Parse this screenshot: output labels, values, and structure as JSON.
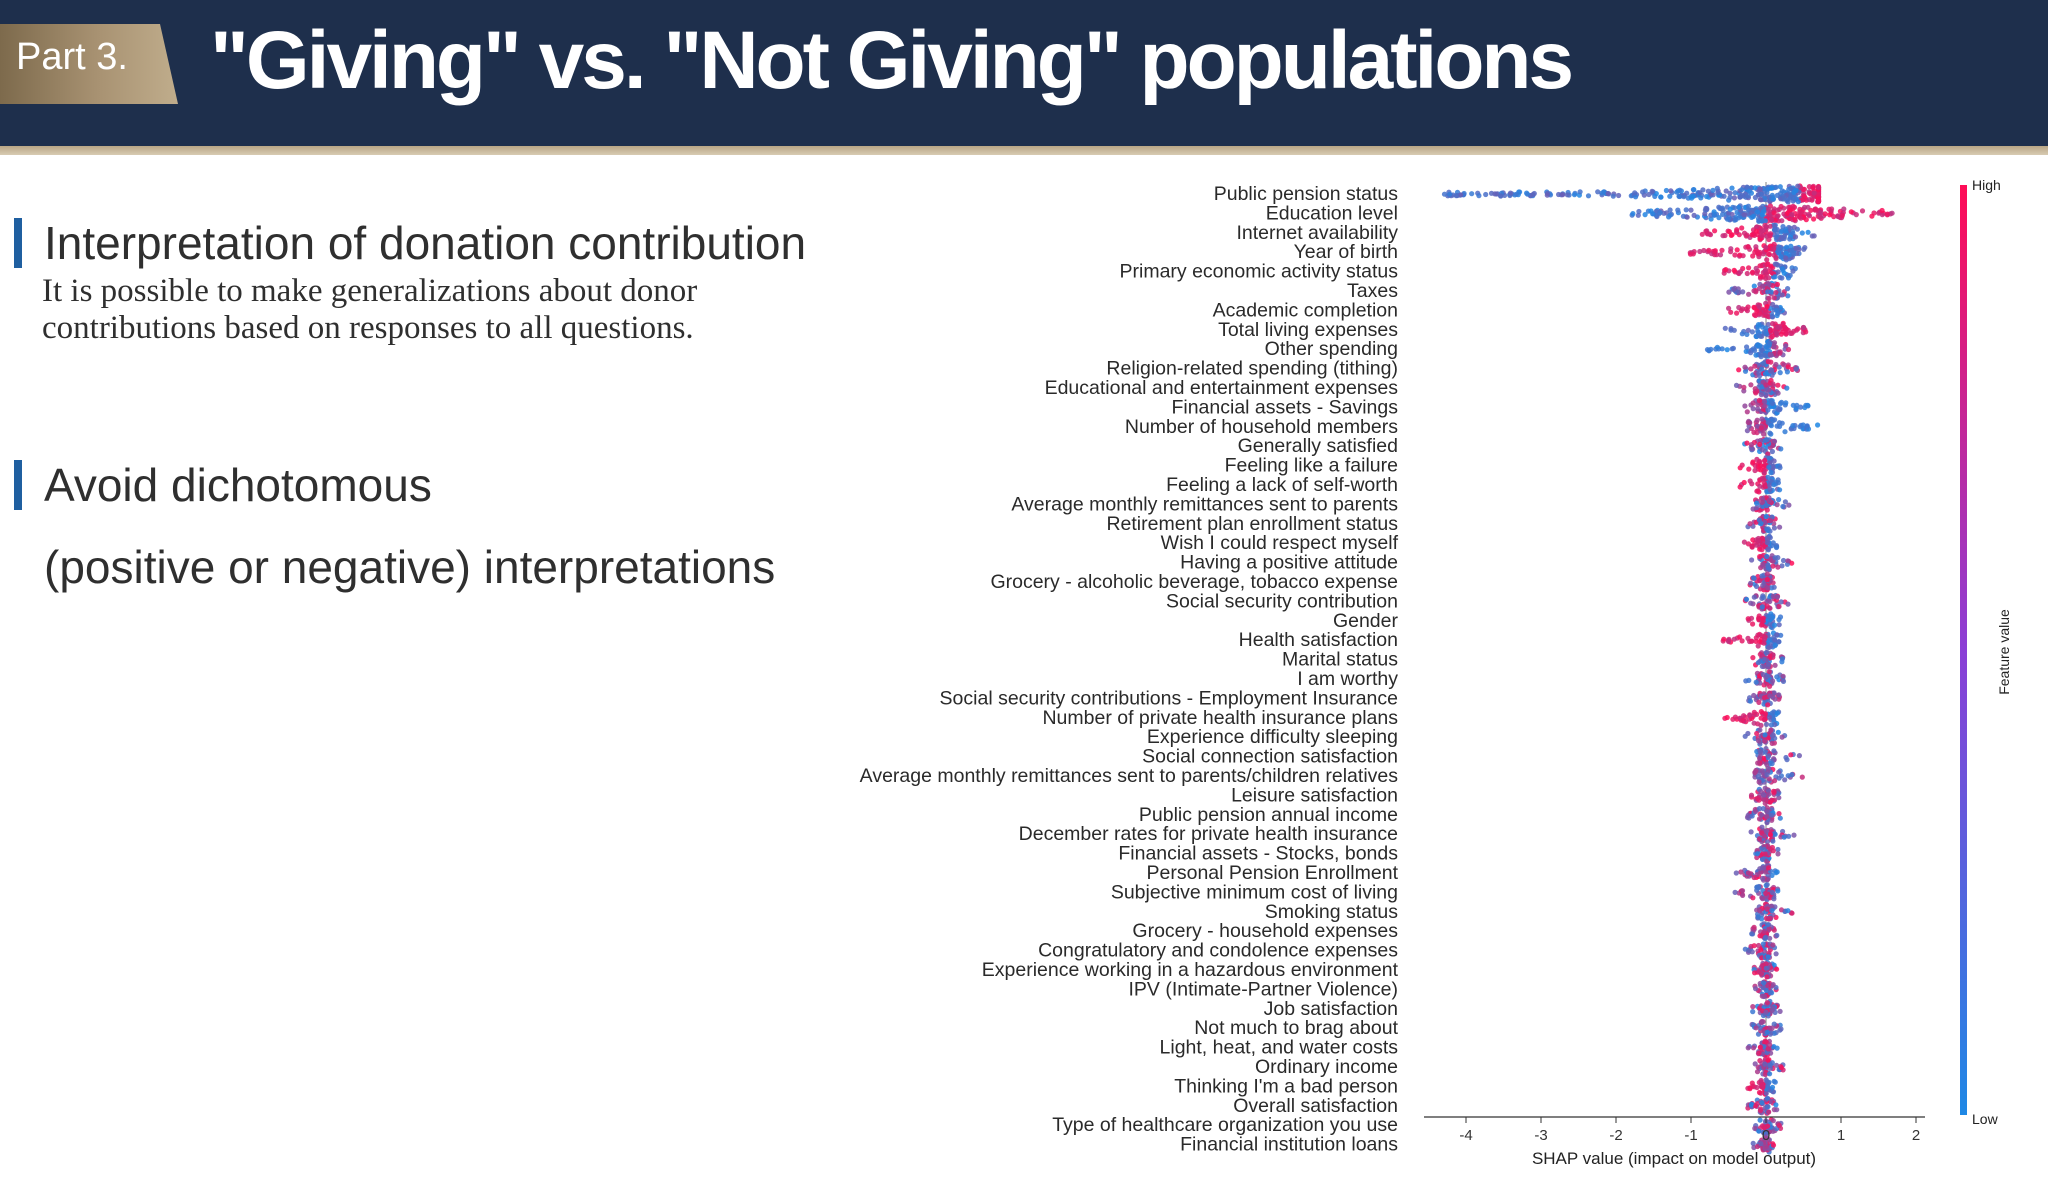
{
  "header": {
    "part_label": "Part 3.",
    "title": "\"Giving\" vs. \"Not Giving\" populations"
  },
  "left": {
    "heading1": "Interpretation of donation contribution",
    "body_lines": [
      "It is possible to make generalizations about donor",
      "contributions based on responses to all questions."
    ],
    "heading2_lines": [
      "Avoid dichotomous",
      "(positive or negative) interpretations"
    ]
  },
  "colors": {
    "header_bg": "#1e2f4c",
    "accent_bar": "#1f5fa0",
    "shap_high": "#ff0d57",
    "shap_low": "#1e88e5"
  },
  "chart_data": {
    "type": "scatter",
    "subtype": "shap-beeswarm-summary",
    "xlabel": "SHAP value (impact on model output)",
    "xlim": [
      -4.5,
      2.2
    ],
    "xticks": [
      -4,
      -3,
      -2,
      -1,
      0,
      1,
      2
    ],
    "colorbar": {
      "label": "Feature value",
      "high": "High",
      "low": "Low"
    },
    "features": [
      {
        "name": "Public pension status",
        "min": -4.3,
        "max": 0.7,
        "dom": 0.45,
        "pol": "hi-pos"
      },
      {
        "name": "Education level",
        "min": -1.8,
        "max": 1.85,
        "dom": 0.0,
        "pol": "hi-pos"
      },
      {
        "name": "Internet availability",
        "min": -0.85,
        "max": 0.65,
        "dom": 0.1,
        "pol": "hi-neg"
      },
      {
        "name": "Year of birth",
        "min": -1.05,
        "max": 0.55,
        "dom": 0.15,
        "pol": "hi-neg"
      },
      {
        "name": "Primary economic activity status",
        "min": -0.6,
        "max": 0.4,
        "dom": 0.1,
        "pol": "hi-neg"
      },
      {
        "name": "Taxes",
        "min": -0.5,
        "max": 0.35,
        "dom": 0.05,
        "pol": "mixed"
      },
      {
        "name": "Academic completion",
        "min": -0.5,
        "max": 0.35,
        "dom": 0.05,
        "pol": "hi-neg"
      },
      {
        "name": "Total living expenses",
        "min": -0.55,
        "max": 0.55,
        "dom": 0.05,
        "pol": "hi-pos"
      },
      {
        "name": "Other spending",
        "min": -0.8,
        "max": 0.3,
        "dom": 0.05,
        "pol": "lo-neg"
      },
      {
        "name": "Religion-related spending (tithing)",
        "min": -0.4,
        "max": 0.45,
        "dom": 0.0,
        "pol": "mixed"
      },
      {
        "name": "Educational and entertainment expenses",
        "min": -0.45,
        "max": 0.35,
        "dom": 0.0,
        "pol": "mixed"
      },
      {
        "name": "Financial assets - Savings",
        "min": -0.3,
        "max": 0.6,
        "dom": 0.0,
        "pol": "lo-pos"
      },
      {
        "name": "Number of household members",
        "min": -0.25,
        "max": 0.7,
        "dom": 0.0,
        "pol": "lo-pos"
      },
      {
        "name": "Generally satisfied",
        "min": -0.3,
        "max": 0.2,
        "dom": 0.0,
        "pol": "mixed"
      },
      {
        "name": "Feeling like a failure",
        "min": -0.35,
        "max": 0.2,
        "dom": 0.0,
        "pol": "hi-neg"
      },
      {
        "name": "Feeling a lack of self-worth",
        "min": -0.35,
        "max": 0.2,
        "dom": 0.0,
        "pol": "hi-neg"
      },
      {
        "name": "Average monthly remittances sent to parents",
        "min": -0.2,
        "max": 0.35,
        "dom": 0.0,
        "pol": "mixed"
      },
      {
        "name": "Retirement plan enrollment status",
        "min": -0.25,
        "max": 0.2,
        "dom": 0.0,
        "pol": "mixed"
      },
      {
        "name": "Wish I could respect myself",
        "min": -0.3,
        "max": 0.2,
        "dom": 0.0,
        "pol": "hi-neg"
      },
      {
        "name": "Having a positive attitude",
        "min": -0.2,
        "max": 0.35,
        "dom": 0.0,
        "pol": "mixed"
      },
      {
        "name": "Grocery - alcoholic beverage, tobacco expense",
        "min": -0.25,
        "max": 0.2,
        "dom": 0.0,
        "pol": "mixed"
      },
      {
        "name": "Social security contribution",
        "min": -0.3,
        "max": 0.3,
        "dom": 0.0,
        "pol": "mixed"
      },
      {
        "name": "Gender",
        "min": -0.3,
        "max": 0.2,
        "dom": 0.0,
        "pol": "hi-neg"
      },
      {
        "name": "Health satisfaction",
        "min": -0.6,
        "max": 0.2,
        "dom": 0.0,
        "pol": "hi-neg"
      },
      {
        "name": "Marital status",
        "min": -0.2,
        "max": 0.25,
        "dom": 0.0,
        "pol": "mixed"
      },
      {
        "name": "I am worthy",
        "min": -0.3,
        "max": 0.25,
        "dom": 0.0,
        "pol": "mixed"
      },
      {
        "name": "Social security contributions - Employment Insurance",
        "min": -0.25,
        "max": 0.2,
        "dom": 0.0,
        "pol": "mixed"
      },
      {
        "name": "Number of private health insurance plans",
        "min": -0.55,
        "max": 0.2,
        "dom": 0.0,
        "pol": "hi-neg"
      },
      {
        "name": "Experience difficulty sleeping",
        "min": -0.3,
        "max": 0.3,
        "dom": 0.0,
        "pol": "mixed"
      },
      {
        "name": "Social connection satisfaction",
        "min": -0.15,
        "max": 0.45,
        "dom": 0.0,
        "pol": "mixed"
      },
      {
        "name": "Average monthly remittances sent to parents/children relatives",
        "min": -0.15,
        "max": 0.5,
        "dom": 0.0,
        "pol": "mixed"
      },
      {
        "name": "Leisure satisfaction",
        "min": -0.2,
        "max": 0.2,
        "dom": 0.0,
        "pol": "mixed"
      },
      {
        "name": "Public pension annual income",
        "min": -0.3,
        "max": 0.2,
        "dom": 0.0,
        "pol": "mixed"
      },
      {
        "name": "December rates for private health insurance",
        "min": -0.2,
        "max": 0.4,
        "dom": 0.0,
        "pol": "mixed"
      },
      {
        "name": "Financial assets - Stocks, bonds",
        "min": -0.2,
        "max": 0.2,
        "dom": 0.0,
        "pol": "mixed"
      },
      {
        "name": "Personal Pension Enrollment",
        "min": -0.4,
        "max": 0.15,
        "dom": 0.0,
        "pol": "mixed"
      },
      {
        "name": "Subjective minimum cost of living",
        "min": -0.45,
        "max": 0.2,
        "dom": 0.0,
        "pol": "mixed"
      },
      {
        "name": "Smoking status",
        "min": -0.15,
        "max": 0.35,
        "dom": 0.0,
        "pol": "mixed"
      },
      {
        "name": "Grocery - household expenses",
        "min": -0.2,
        "max": 0.15,
        "dom": 0.0,
        "pol": "mixed"
      },
      {
        "name": "Congratulatory and condolence expenses",
        "min": -0.3,
        "max": 0.2,
        "dom": 0.0,
        "pol": "mixed"
      },
      {
        "name": "Experience working in a hazardous environment",
        "min": -0.2,
        "max": 0.15,
        "dom": 0.0,
        "pol": "mixed"
      },
      {
        "name": "IPV (Intimate-Partner Violence)",
        "min": -0.2,
        "max": 0.15,
        "dom": 0.0,
        "pol": "mixed"
      },
      {
        "name": "Job satisfaction",
        "min": -0.2,
        "max": 0.2,
        "dom": 0.0,
        "pol": "mixed"
      },
      {
        "name": "Not much to brag about",
        "min": -0.2,
        "max": 0.2,
        "dom": 0.0,
        "pol": "mixed"
      },
      {
        "name": "Light, heat, and water costs",
        "min": -0.25,
        "max": 0.15,
        "dom": 0.0,
        "pol": "mixed"
      },
      {
        "name": "Ordinary income",
        "min": -0.15,
        "max": 0.25,
        "dom": 0.0,
        "pol": "mixed"
      },
      {
        "name": "Thinking I'm a bad person",
        "min": -0.25,
        "max": 0.15,
        "dom": 0.0,
        "pol": "hi-neg"
      },
      {
        "name": "Overall satisfaction",
        "min": -0.25,
        "max": 0.15,
        "dom": 0.0,
        "pol": "mixed"
      },
      {
        "name": "Type of healthcare organization you use",
        "min": -0.15,
        "max": 0.2,
        "dom": 0.0,
        "pol": "mixed"
      },
      {
        "name": "Financial institution loans",
        "min": -0.2,
        "max": 0.15,
        "dom": 0.0,
        "pol": "mixed"
      }
    ]
  }
}
